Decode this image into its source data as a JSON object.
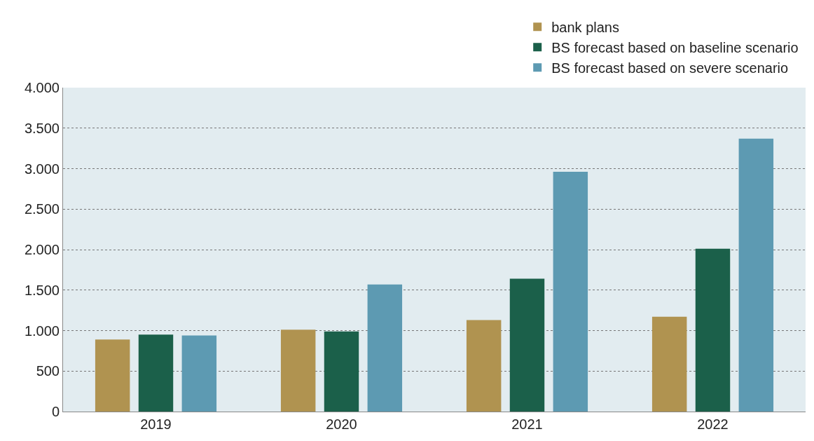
{
  "chart_data": {
    "type": "bar",
    "categories": [
      "2019",
      "2020",
      "2021",
      "2022"
    ],
    "series": [
      {
        "name": "bank plans",
        "color": "#b09350",
        "values": [
          890,
          1010,
          1130,
          1170
        ]
      },
      {
        "name": "BS forecast based on baseline scenario",
        "color": "#1b604a",
        "values": [
          950,
          990,
          1640,
          2010
        ]
      },
      {
        "name": "BS forecast based on severe scenario",
        "color": "#5d9ab2",
        "values": [
          940,
          1570,
          2960,
          3370
        ]
      }
    ],
    "ylim": [
      0,
      4000
    ],
    "yticks": [
      {
        "value": 0,
        "label": "0"
      },
      {
        "value": 500,
        "label": "500"
      },
      {
        "value": 1000,
        "label": "1.000"
      },
      {
        "value": 1500,
        "label": "1.500"
      },
      {
        "value": 2000,
        "label": "2.000"
      },
      {
        "value": 2500,
        "label": "2.500"
      },
      {
        "value": 3000,
        "label": "3.000"
      },
      {
        "value": 3500,
        "label": "3.500"
      },
      {
        "value": 4000,
        "label": "4.000"
      }
    ],
    "grid": "y",
    "legend": "top right"
  }
}
